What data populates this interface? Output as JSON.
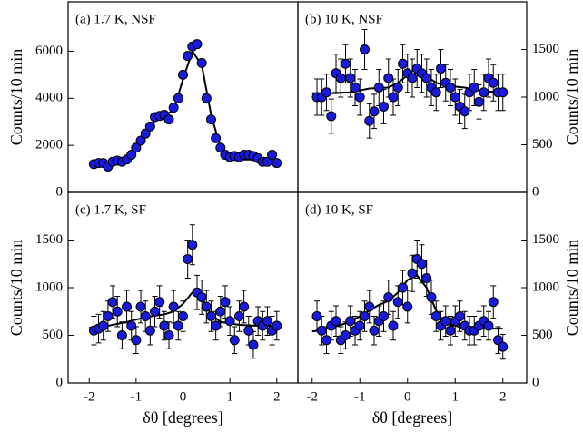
{
  "chart_data": [
    {
      "type": "scatter",
      "title": "(a) 1.7 K, NSF",
      "ylabel": "Counts/10 min",
      "yaxis_side": "left",
      "xlim": [
        -2.45,
        2.45
      ],
      "ylim": [
        0,
        8100
      ],
      "yticks": [
        0,
        2000,
        4000,
        6000
      ],
      "x": [
        -1.9,
        -1.8,
        -1.7,
        -1.6,
        -1.5,
        -1.4,
        -1.3,
        -1.2,
        -1.1,
        -1.0,
        -0.9,
        -0.8,
        -0.7,
        -0.6,
        -0.5,
        -0.4,
        -0.3,
        -0.2,
        -0.1,
        0.0,
        0.1,
        0.2,
        0.3,
        0.4,
        0.5,
        0.6,
        0.7,
        0.8,
        0.9,
        1.0,
        1.1,
        1.2,
        1.3,
        1.4,
        1.5,
        1.6,
        1.7,
        1.8,
        1.9,
        2.0
      ],
      "points": {
        "color": "#1a1adb",
        "values": [
          1200,
          1250,
          1250,
          1100,
          1300,
          1350,
          1300,
          1400,
          1600,
          1900,
          2200,
          2500,
          2800,
          3200,
          3250,
          3300,
          3100,
          3600,
          4000,
          5000,
          5800,
          6200,
          6300,
          5500,
          4000,
          3100,
          2300,
          1900,
          1600,
          1500,
          1550,
          1500,
          1600,
          1600,
          1550,
          1450,
          1300,
          1300,
          1600,
          1250
        ],
        "errors": [
          80,
          80,
          80,
          80,
          80,
          80,
          80,
          80,
          90,
          90,
          100,
          100,
          110,
          120,
          120,
          120,
          120,
          130,
          130,
          150,
          160,
          170,
          170,
          160,
          130,
          120,
          100,
          90,
          90,
          80,
          80,
          80,
          80,
          80,
          80,
          80,
          80,
          80,
          80,
          80
        ]
      },
      "fit": {
        "color": "#000000",
        "x": [
          -2.0,
          -1.8,
          -1.6,
          -1.4,
          -1.2,
          -1.0,
          -0.8,
          -0.6,
          -0.4,
          -0.2,
          0.0,
          0.2,
          0.4,
          0.6,
          0.8,
          1.0,
          1.2,
          1.4,
          1.6,
          1.8,
          2.0
        ],
        "values": [
          1150,
          1200,
          1250,
          1300,
          1450,
          1850,
          2500,
          3050,
          3250,
          3500,
          4800,
          6000,
          5400,
          3300,
          1900,
          1450,
          1400,
          1400,
          1400,
          1350,
          1300
        ]
      }
    },
    {
      "type": "scatter",
      "title": "(b) 10 K, NSF",
      "ylabel": "Counts/10 min",
      "yaxis_side": "right",
      "xlim": [
        -2.3,
        2.5
      ],
      "ylim": [
        0,
        2000
      ],
      "yticks": [
        0,
        500,
        1000,
        1500
      ],
      "x": [
        -1.9,
        -1.8,
        -1.7,
        -1.6,
        -1.5,
        -1.4,
        -1.3,
        -1.2,
        -1.1,
        -1.0,
        -0.9,
        -0.8,
        -0.7,
        -0.6,
        -0.5,
        -0.4,
        -0.3,
        -0.2,
        -0.1,
        0.0,
        0.1,
        0.2,
        0.3,
        0.4,
        0.5,
        0.6,
        0.7,
        0.8,
        0.9,
        1.0,
        1.1,
        1.2,
        1.3,
        1.4,
        1.5,
        1.6,
        1.7,
        1.8,
        1.9,
        2.0
      ],
      "points": {
        "color": "#1a1adb",
        "values": [
          1000,
          1000,
          1050,
          800,
          1250,
          1200,
          1350,
          1200,
          1100,
          1000,
          1500,
          750,
          850,
          1100,
          900,
          1200,
          1000,
          1100,
          1350,
          1250,
          1200,
          1300,
          1250,
          1200,
          1100,
          1050,
          1300,
          1150,
          1100,
          1000,
          900,
          850,
          1050,
          1100,
          950,
          1050,
          1200,
          1150,
          1050,
          1050
        ],
        "errors": [
          190,
          190,
          190,
          180,
          200,
          200,
          200,
          200,
          190,
          190,
          210,
          180,
          180,
          190,
          180,
          200,
          190,
          190,
          200,
          200,
          200,
          200,
          200,
          200,
          190,
          190,
          200,
          190,
          190,
          190,
          180,
          180,
          190,
          190,
          180,
          190,
          200,
          190,
          190,
          190
        ]
      },
      "fit": {
        "color": "#000000",
        "x": [
          -2.0,
          -1.6,
          -1.2,
          -0.8,
          -0.4,
          -0.2,
          0.0,
          0.2,
          0.4,
          0.6,
          0.8,
          1.2,
          1.6,
          2.0
        ],
        "values": [
          1040,
          1040,
          1050,
          1090,
          1100,
          1150,
          1230,
          1250,
          1220,
          1150,
          1120,
          1100,
          1060,
          1050
        ]
      }
    },
    {
      "type": "scatter",
      "title": "(c) 1.7 K, SF",
      "ylabel": "Counts/10 min",
      "xlabel": "δθ [degrees]",
      "yaxis_side": "left",
      "xlim": [
        -2.45,
        2.45
      ],
      "ylim": [
        0,
        2000
      ],
      "yticks": [
        0,
        500,
        1000,
        1500
      ],
      "xticks": [
        -2,
        -1,
        0,
        1,
        2
      ],
      "x": [
        -1.9,
        -1.8,
        -1.7,
        -1.6,
        -1.5,
        -1.4,
        -1.3,
        -1.2,
        -1.1,
        -1.0,
        -0.9,
        -0.8,
        -0.7,
        -0.6,
        -0.5,
        -0.4,
        -0.3,
        -0.2,
        -0.1,
        0.0,
        0.1,
        0.2,
        0.3,
        0.4,
        0.5,
        0.6,
        0.7,
        0.8,
        0.9,
        1.0,
        1.1,
        1.2,
        1.3,
        1.4,
        1.5,
        1.6,
        1.7,
        1.8,
        1.9,
        2.0
      ],
      "points": {
        "color": "#1a1adb",
        "values": [
          550,
          570,
          600,
          700,
          850,
          750,
          500,
          800,
          600,
          450,
          800,
          700,
          550,
          750,
          850,
          600,
          500,
          800,
          600,
          700,
          1300,
          1450,
          950,
          900,
          800,
          700,
          600,
          750,
          850,
          650,
          450,
          700,
          800,
          550,
          400,
          650,
          600,
          650,
          550,
          600
        ],
        "errors": [
          150,
          150,
          150,
          160,
          170,
          160,
          140,
          170,
          150,
          140,
          170,
          160,
          150,
          160,
          170,
          150,
          140,
          170,
          150,
          160,
          200,
          210,
          180,
          180,
          170,
          160,
          150,
          160,
          170,
          150,
          140,
          160,
          170,
          150,
          140,
          150,
          150,
          150,
          150,
          150
        ]
      },
      "fit": {
        "color": "#000000",
        "x": [
          -2.0,
          -1.6,
          -1.2,
          -0.8,
          -0.4,
          -0.2,
          0.0,
          0.2,
          0.4,
          0.6,
          0.8,
          1.2,
          1.6,
          2.0
        ],
        "values": [
          580,
          600,
          640,
          690,
          720,
          750,
          830,
          950,
          890,
          720,
          640,
          610,
          600,
          600
        ]
      }
    },
    {
      "type": "scatter",
      "title": "(d) 10 K, SF",
      "ylabel": "Counts/10 min",
      "xlabel": "δθ [degrees]",
      "yaxis_side": "right",
      "xlim": [
        -2.3,
        2.5
      ],
      "ylim": [
        0,
        2000
      ],
      "yticks": [
        0,
        500,
        1000,
        1500
      ],
      "xticks": [
        -2,
        -1,
        0,
        1,
        2
      ],
      "x": [
        -1.9,
        -1.8,
        -1.7,
        -1.6,
        -1.5,
        -1.4,
        -1.3,
        -1.2,
        -1.1,
        -1.0,
        -0.9,
        -0.8,
        -0.7,
        -0.6,
        -0.5,
        -0.4,
        -0.3,
        -0.2,
        -0.1,
        0.0,
        0.1,
        0.2,
        0.3,
        0.4,
        0.5,
        0.6,
        0.7,
        0.8,
        0.9,
        1.0,
        1.1,
        1.2,
        1.3,
        1.4,
        1.5,
        1.6,
        1.7,
        1.8,
        1.9,
        2.0
      ],
      "points": {
        "color": "#1a1adb",
        "values": [
          700,
          550,
          450,
          600,
          650,
          450,
          500,
          650,
          550,
          600,
          700,
          800,
          550,
          650,
          700,
          900,
          600,
          850,
          1000,
          800,
          1150,
          1300,
          1250,
          1100,
          900,
          700,
          600,
          650,
          550,
          650,
          700,
          600,
          550,
          550,
          600,
          650,
          600,
          850,
          450,
          380
        ],
        "errors": [
          160,
          150,
          140,
          150,
          160,
          140,
          140,
          160,
          150,
          150,
          160,
          170,
          150,
          160,
          160,
          180,
          150,
          170,
          180,
          170,
          190,
          200,
          200,
          190,
          180,
          160,
          150,
          160,
          150,
          160,
          160,
          150,
          150,
          150,
          150,
          160,
          150,
          170,
          140,
          130
        ]
      },
      "fit": {
        "color": "#000000",
        "x": [
          -2.0,
          -1.6,
          -1.2,
          -0.8,
          -0.6,
          -0.4,
          -0.2,
          0.0,
          0.2,
          0.4,
          0.6,
          0.8,
          1.2,
          1.6,
          2.0
        ],
        "values": [
          540,
          580,
          640,
          760,
          820,
          860,
          950,
          1080,
          1130,
          1000,
          760,
          620,
          580,
          570,
          570
        ]
      }
    }
  ]
}
